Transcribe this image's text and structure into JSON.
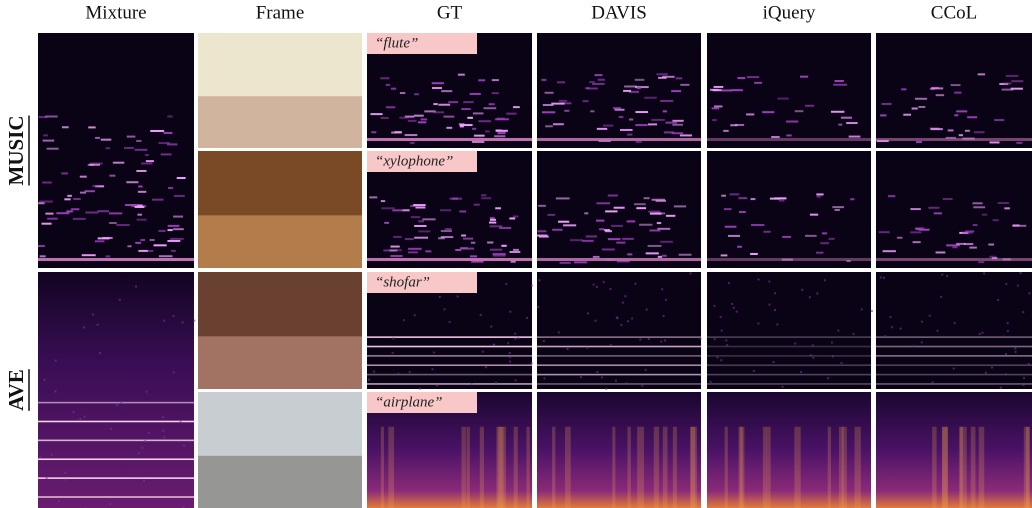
{
  "columns": [
    "Mixture",
    "Frame",
    "GT",
    "DAVIS",
    "iQuery",
    "CCoL"
  ],
  "groups": [
    {
      "label": "MUSIC",
      "queries": [
        "“flute”",
        "“xylophone”"
      ]
    },
    {
      "label": "AVE",
      "queries": [
        "“shofar”",
        "“airplane”"
      ]
    }
  ]
}
